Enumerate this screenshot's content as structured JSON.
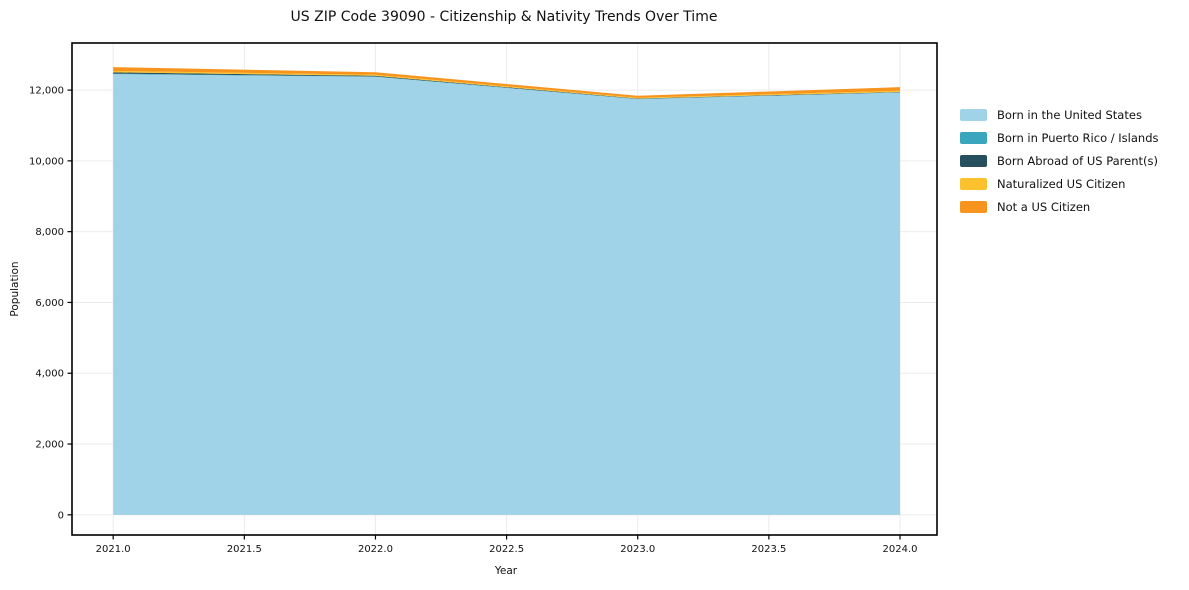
{
  "title": "US ZIP Code 39090 - Citizenship & Nativity Trends Over Time",
  "chart_data": {
    "type": "area",
    "stacked": true,
    "title": "US ZIP Code 39090 - Citizenship & Nativity Trends Over Time",
    "xlabel": "Year",
    "ylabel": "Population",
    "x": [
      2021,
      2022,
      2023,
      2024
    ],
    "series": [
      {
        "name": "Born in the United States",
        "color": "#a0d2e8",
        "values": [
          12450,
          12375,
          11745,
          11930
        ]
      },
      {
        "name": "Born in Puerto Rico / Islands",
        "color": "#3aa6bd",
        "values": [
          15,
          8,
          5,
          5
        ]
      },
      {
        "name": "Born Abroad of US Parent(s)",
        "color": "#27505f",
        "values": [
          35,
          20,
          12,
          12
        ]
      },
      {
        "name": "Naturalized US Citizen",
        "color": "#fcc22d",
        "values": [
          40,
          30,
          22,
          35
        ]
      },
      {
        "name": "Not a US Citizen",
        "color": "#f7941e",
        "values": [
          110,
          70,
          55,
          100
        ]
      }
    ],
    "xlim": [
      2020.843,
      2024.141
    ],
    "ylim": [
      -570,
      13330
    ],
    "xticks": [
      2021.0,
      2021.5,
      2022.0,
      2022.5,
      2023.0,
      2023.5,
      2024.0
    ],
    "xtick_labels": [
      "2021.0",
      "2021.5",
      "2022.0",
      "2022.5",
      "2023.0",
      "2023.5",
      "2024.0"
    ],
    "yticks": [
      0,
      2000,
      4000,
      6000,
      8000,
      10000,
      12000
    ],
    "ytick_labels": [
      "0",
      "2,000",
      "4,000",
      "6,000",
      "8,000",
      "10,000",
      "12,000"
    ],
    "grid": true,
    "legend_position": "right-outside",
    "colors": {
      "spine": "#000000",
      "grid": "#ebebeb",
      "text": "#111111",
      "background": "#ffffff"
    }
  }
}
